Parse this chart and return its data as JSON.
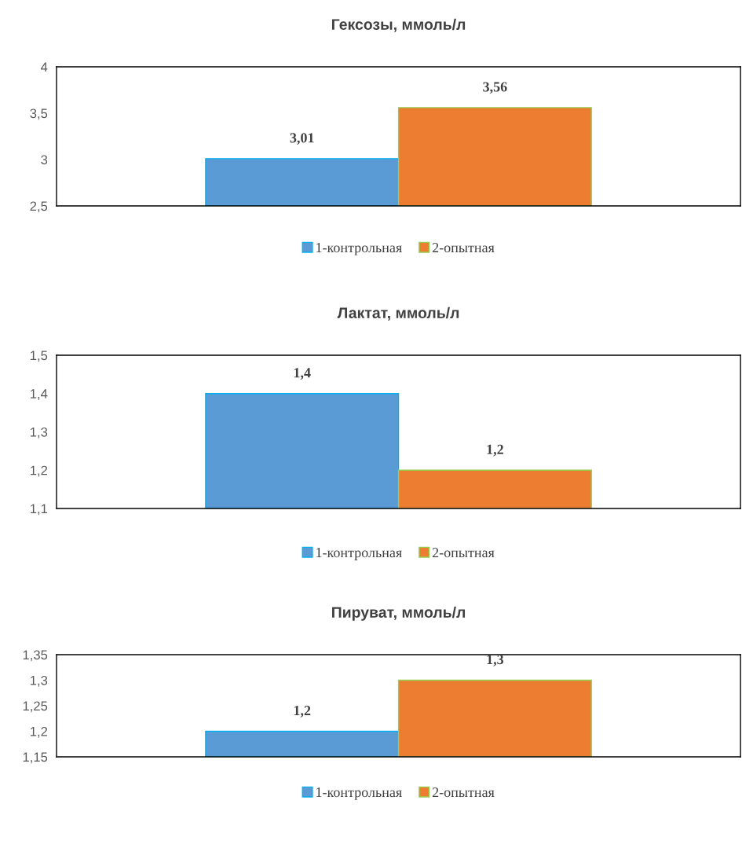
{
  "chart_data": [
    {
      "type": "bar",
      "title": "Гексозы, ммоль/л",
      "categories": [
        null
      ],
      "series": [
        {
          "name": "1-контрольная",
          "color": "#5b9bd5",
          "values": [
            3.01
          ],
          "value_labels": [
            "3,01"
          ]
        },
        {
          "name": "2-опытная",
          "color": "#ed7d31",
          "values": [
            3.56
          ],
          "value_labels": [
            "3,56"
          ]
        }
      ],
      "ylim": [
        2.5,
        4
      ],
      "yticks": [
        {
          "value": 2.5,
          "label": "2,5"
        },
        3,
        {
          "value": 3.5,
          "label": "3,5"
        },
        4
      ],
      "grid": false,
      "legend": "bottom"
    },
    {
      "type": "bar",
      "title": "Лактат, ммоль/л",
      "categories": [
        null
      ],
      "series": [
        {
          "name": "1-контрольная",
          "color": "#5b9bd5",
          "values": [
            1.4
          ],
          "value_labels": [
            "1,4"
          ]
        },
        {
          "name": "2-опытная",
          "color": "#ed7d31",
          "values": [
            1.2
          ],
          "value_labels": [
            "1,2"
          ]
        }
      ],
      "ylim": [
        1.1,
        1.5
      ],
      "yticks": [
        {
          "value": 1.1,
          "label": "1,1"
        },
        {
          "value": 1.2,
          "label": "1,2"
        },
        {
          "value": 1.3,
          "label": "1,3"
        },
        {
          "value": 1.4,
          "label": "1,4"
        },
        {
          "value": 1.5,
          "label": "1,5"
        }
      ],
      "grid": false,
      "legend": "bottom"
    },
    {
      "type": "bar",
      "title": "Пируват, ммоль/л",
      "categories": [
        null
      ],
      "series": [
        {
          "name": "1-контрольная",
          "color": "#5b9bd5",
          "values": [
            1.2
          ],
          "value_labels": [
            "1,2"
          ]
        },
        {
          "name": "2-опытная",
          "color": "#ed7d31",
          "values": [
            1.3
          ],
          "value_labels": [
            "1,3"
          ]
        }
      ],
      "ylim": [
        1.15,
        1.35
      ],
      "yticks": [
        {
          "value": 1.15,
          "label": "1,15"
        },
        {
          "value": 1.2,
          "label": "1,2"
        },
        {
          "value": 1.25,
          "label": "1,25"
        },
        {
          "value": 1.3,
          "label": "1,3"
        },
        {
          "value": 1.35,
          "label": "1,35"
        }
      ],
      "grid": false,
      "legend": "bottom"
    }
  ]
}
